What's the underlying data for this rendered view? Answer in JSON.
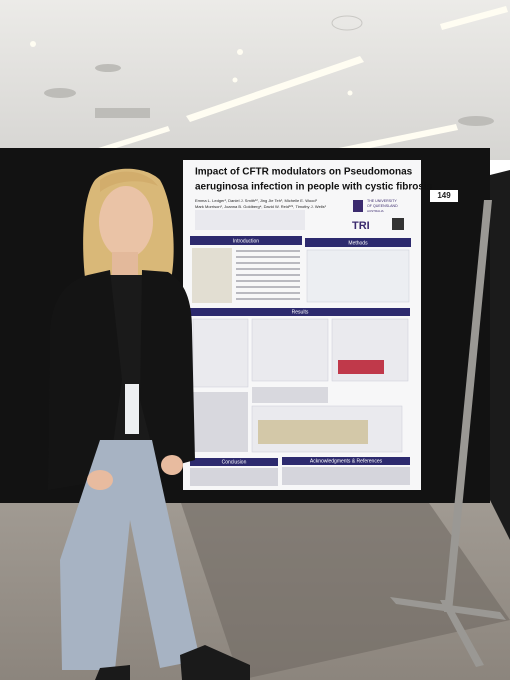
{
  "poster": {
    "title": [
      "Impact of CFTR modulators on Pseudomonas",
      "aeruginosa infection in people with cystic fibrosis"
    ],
    "authors": [
      "Emma L. Ledger¹, Daniel J. Smith¹², Jing Jie Teh¹, Michelle E. Wood¹",
      "Mark Morrison¹, Joanna B. Goldberg⁴, David W. Reid¹²⁵, Timothy J. Wells¹"
    ],
    "university": [
      "THE UNIVERSITY",
      "OF QUEENSLAND",
      "AUSTRALIA"
    ],
    "institute": "TRI",
    "sections": {
      "introduction": "Introduction",
      "methods": "Methods",
      "results": "Results",
      "conclusion": "Conclusion",
      "acknowledgments": "Acknowledgments & References"
    }
  },
  "board_number": "149"
}
